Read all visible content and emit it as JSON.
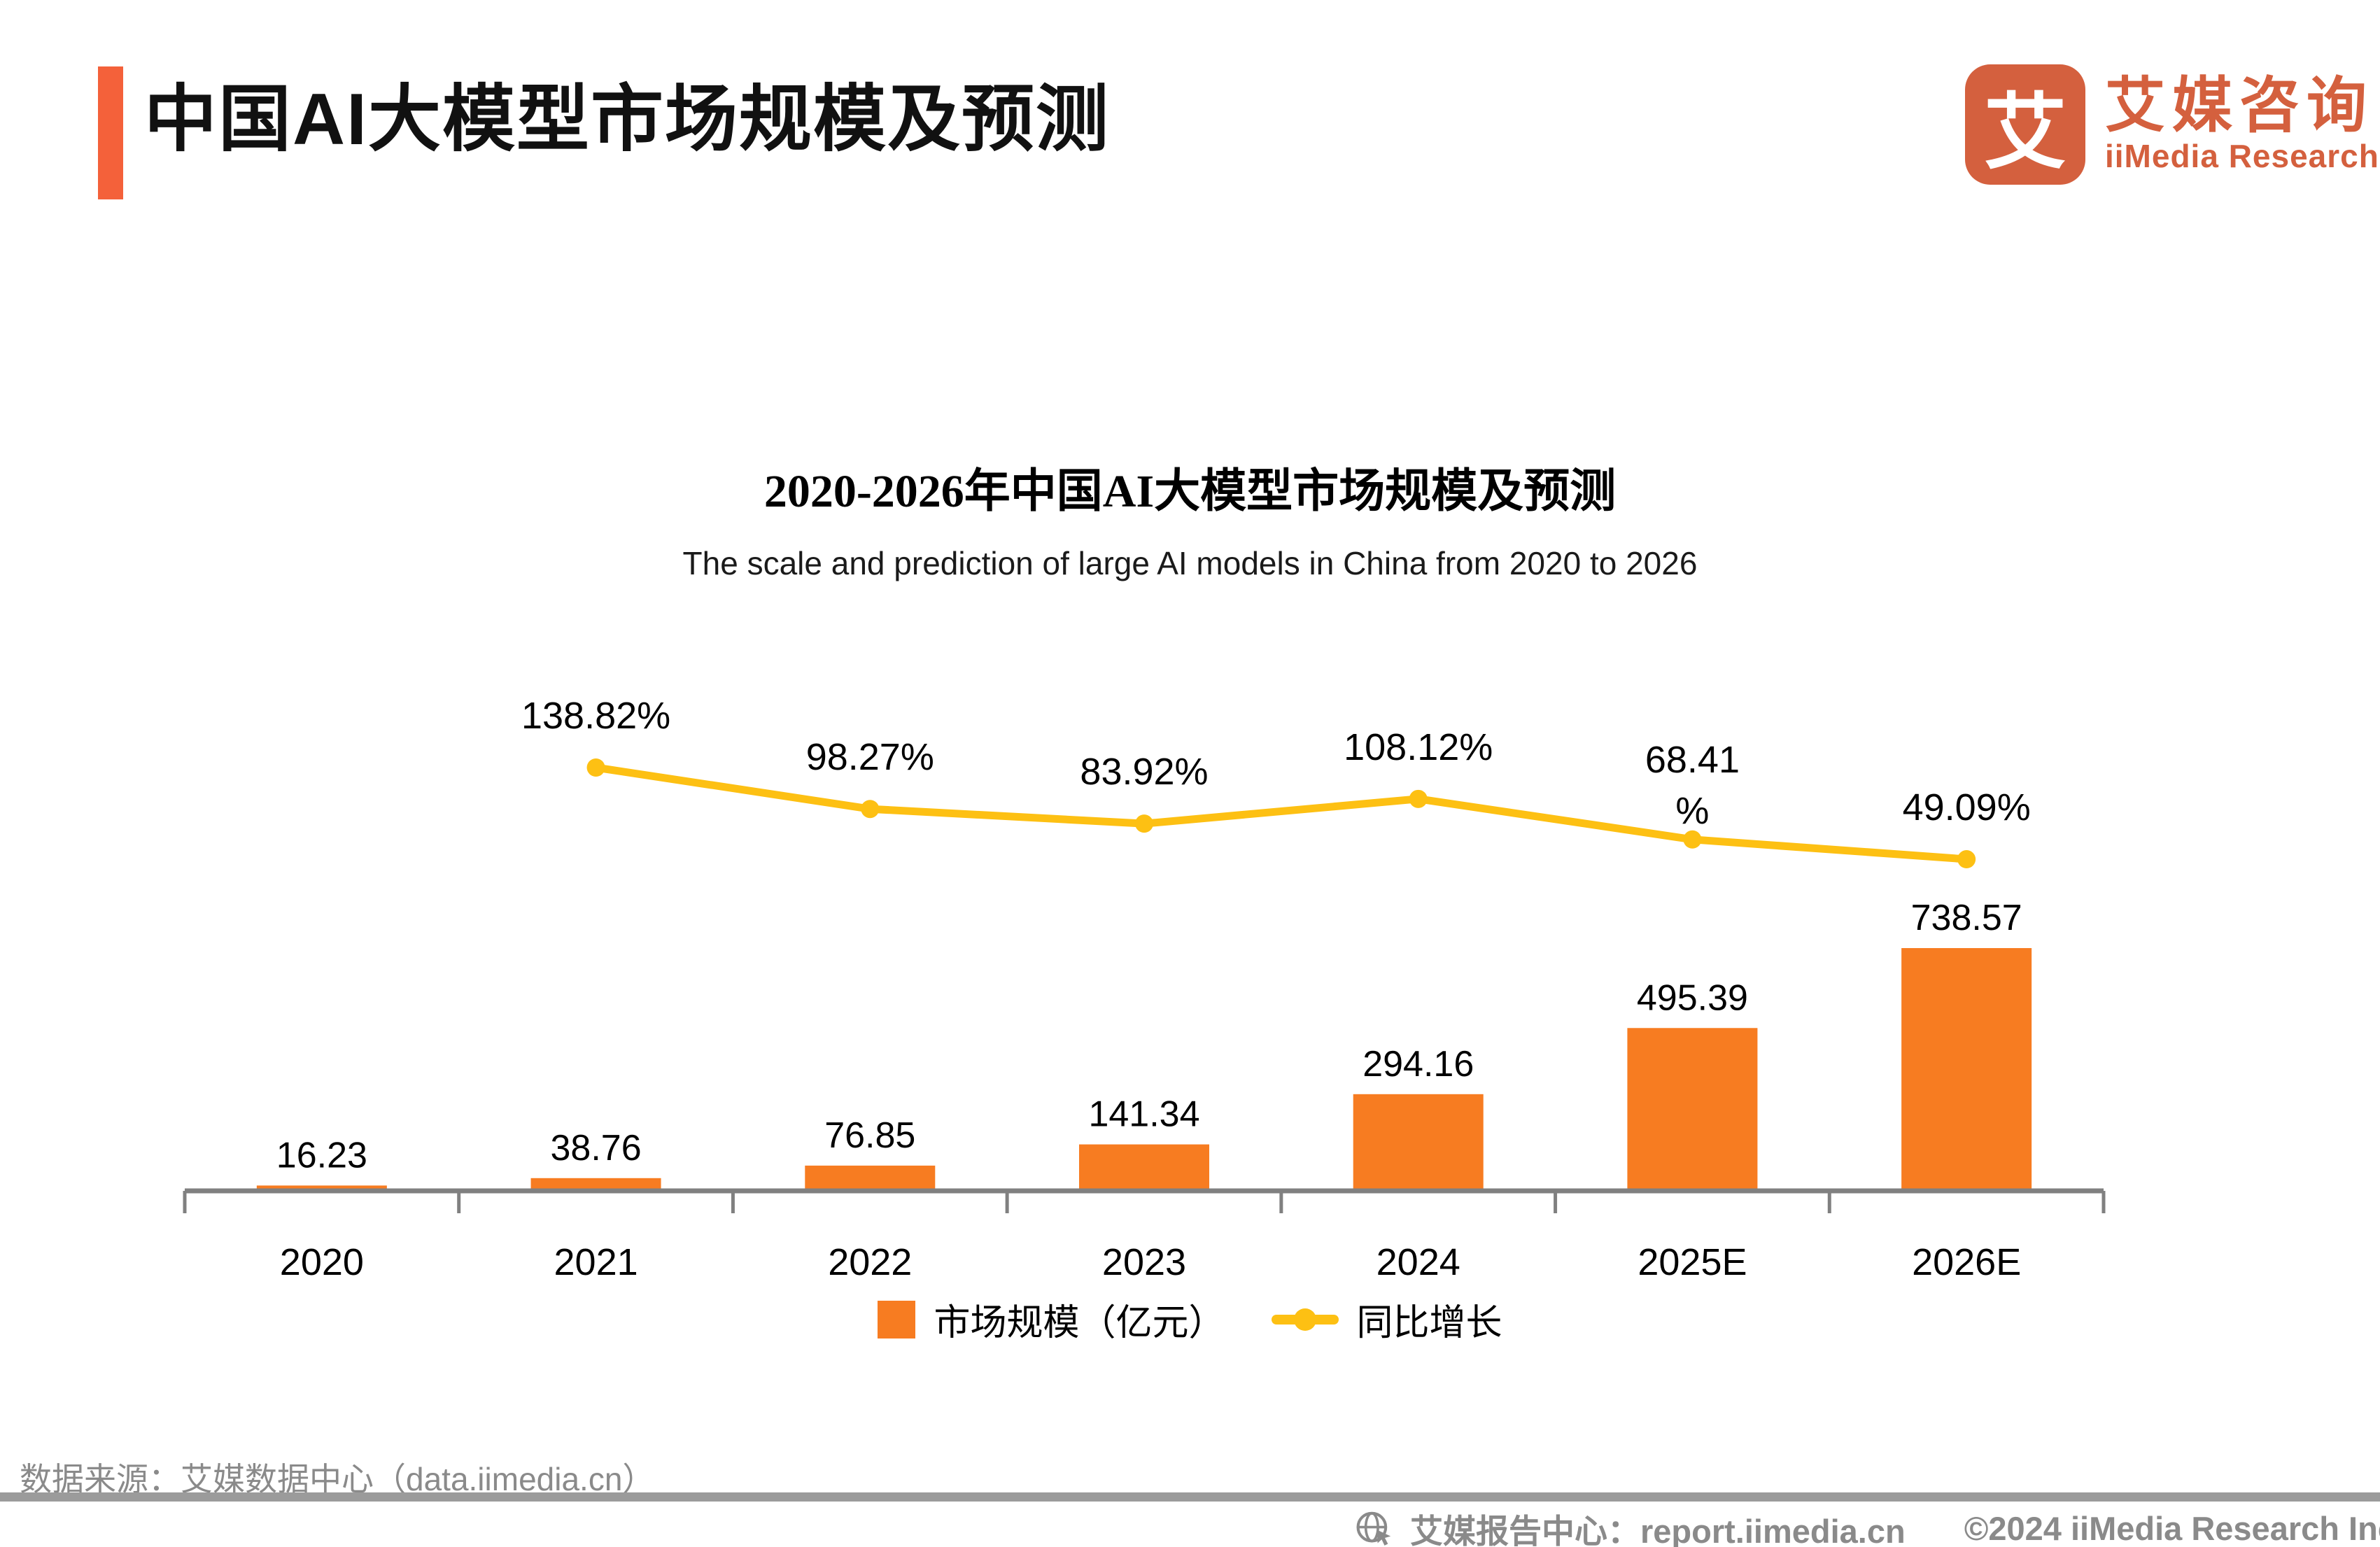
{
  "page": {
    "title": "中国AI大模型市场规模及预测",
    "logo": {
      "mark_glyph": "艾",
      "name_cn": "艾媒咨询",
      "name_en": "iiMedia Research"
    },
    "source_note": "数据来源：艾媒数据中心（data.iimedia.cn）",
    "footer": {
      "report_center": "艾媒报告中心：report.iimedia.cn",
      "copyright": "©2024  iiMedia Research  Inc"
    }
  },
  "colors": {
    "accent_orange": "#F4613A",
    "logo_orange": "#D4603E",
    "bar_orange": "#F77C21",
    "line_yellow": "#FDC013",
    "axis_gray": "#808080",
    "muted_gray": "#8a8a8a",
    "divider_gray": "#9b9b9b",
    "text_black": "#000000"
  },
  "chart_data": {
    "type": "bar",
    "combo": "bar+line",
    "title": "2020-2026年中国AI大模型市场规模及预测",
    "subtitle": "The scale and prediction of large AI models in China from 2020 to 2026",
    "categories": [
      "2020",
      "2021",
      "2022",
      "2023",
      "2024",
      "2025E",
      "2026E"
    ],
    "series": [
      {
        "name": "市场规模（亿元）",
        "type": "bar",
        "color": "#F77C21",
        "values": [
          16.23,
          38.76,
          76.85,
          141.34,
          294.16,
          495.39,
          738.57
        ]
      },
      {
        "name": "同比增长",
        "type": "line",
        "color": "#FDC013",
        "unit": "%",
        "values": [
          null,
          138.82,
          98.27,
          83.92,
          108.12,
          68.41,
          49.09
        ],
        "labels": [
          "",
          "138.82%",
          "98.27%",
          "83.92%",
          "108.12%",
          "68.41\n%",
          "49.09%"
        ]
      }
    ],
    "legend_position": "bottom",
    "grid": false,
    "y_axis_visible": false,
    "x_axis_color": "#808080"
  }
}
